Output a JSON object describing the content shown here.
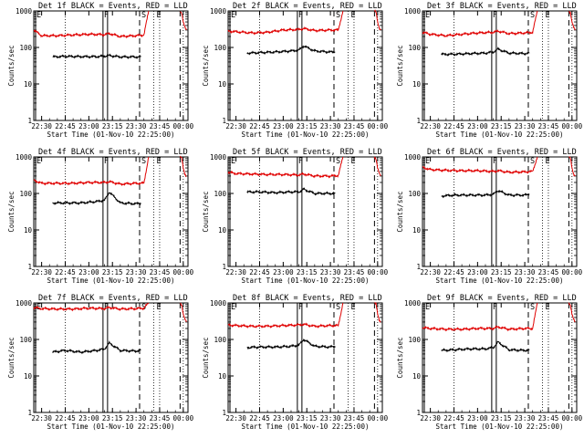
{
  "figure": {
    "title_template": "Det {n}f BLACK = Events, RED = LLD",
    "xlabel": "Start Time (01-Nov-10 22:25:00)",
    "ylabel": "Counts/sec",
    "marker_labels": [
      "E",
      "F",
      "S",
      "E"
    ]
  },
  "chart_data": [
    {
      "type": "line",
      "title": "Det 1f BLACK = Events, RED = LLD",
      "xlabel": "Start Time (01-Nov-10 22:25:00)",
      "ylabel": "Counts/sec",
      "yscale": "log",
      "ylim": [
        1,
        1000
      ],
      "xlim": [
        "22:25",
        "00:03"
      ],
      "xticks": [
        "22:30",
        "22:45",
        "23:00",
        "23:15",
        "23:30",
        "23:45",
        "00:00"
      ],
      "yticks": [
        "1",
        "10",
        "100",
        "1000"
      ],
      "series": [
        {
          "color": "#000000",
          "x": [
            "22:37",
            "22:45",
            "22:55",
            "23:05",
            "23:10",
            "23:13",
            "23:20",
            "23:30",
            "23:33"
          ],
          "y": [
            55,
            57,
            56,
            56,
            58,
            60,
            55,
            55,
            55
          ]
        },
        {
          "color": "#e00000",
          "x": [
            "22:25",
            "22:30",
            "22:40",
            "22:50",
            "23:00",
            "23:10",
            "23:13",
            "23:20",
            "23:30",
            "23:35",
            "23:38"
          ],
          "y": [
            300,
            210,
            210,
            220,
            230,
            225,
            240,
            200,
            210,
            220,
            1000
          ]
        },
        {
          "color": "#e00000",
          "x": [
            "23:58",
            "23:59",
            "00:00",
            "00:01",
            "00:02"
          ],
          "y": [
            1000,
            900,
            500,
            350,
            300
          ]
        }
      ],
      "markers": [
        {
          "label": "E",
          "x": "22:25"
        },
        {
          "label": "F",
          "x": "23:09"
        },
        {
          "label": "S",
          "x": "23:34"
        },
        {
          "label": "E",
          "x": "23:43"
        }
      ]
    },
    {
      "type": "line",
      "title": "Det 2f BLACK = Events, RED = LLD",
      "xlabel": "Start Time (01-Nov-10 22:25:00)",
      "ylabel": "Counts/sec",
      "yscale": "log",
      "ylim": [
        1,
        1000
      ],
      "xlim": [
        "22:25",
        "00:03"
      ],
      "xticks": [
        "22:30",
        "22:45",
        "23:00",
        "23:15",
        "23:30",
        "23:45",
        "00:00"
      ],
      "yticks": [
        "1",
        "10",
        "100",
        "1000"
      ],
      "series": [
        {
          "color": "#000000",
          "x": [
            "22:37",
            "22:45",
            "22:55",
            "23:05",
            "23:10",
            "23:13",
            "23:20",
            "23:30",
            "23:33"
          ],
          "y": [
            70,
            72,
            75,
            80,
            85,
            110,
            80,
            75,
            75
          ]
        },
        {
          "color": "#e00000",
          "x": [
            "22:25",
            "22:30",
            "22:40",
            "22:50",
            "23:00",
            "23:10",
            "23:13",
            "23:20",
            "23:30",
            "23:35",
            "23:38"
          ],
          "y": [
            280,
            270,
            250,
            260,
            300,
            310,
            330,
            290,
            300,
            300,
            1000
          ]
        },
        {
          "color": "#e00000",
          "x": [
            "23:58",
            "23:59",
            "00:00",
            "00:01",
            "00:02"
          ],
          "y": [
            1000,
            900,
            500,
            350,
            300
          ]
        }
      ],
      "markers": [
        {
          "label": "E",
          "x": "22:25"
        },
        {
          "label": "F",
          "x": "23:09"
        },
        {
          "label": "S",
          "x": "23:34"
        },
        {
          "label": "E",
          "x": "23:43"
        }
      ]
    },
    {
      "type": "line",
      "title": "Det 3f BLACK = Events, RED = LLD",
      "xlabel": "Start Time (01-Nov-10 22:25:00)",
      "ylabel": "Counts/sec",
      "yscale": "log",
      "ylim": [
        1,
        1000
      ],
      "xlim": [
        "22:25",
        "00:03"
      ],
      "xticks": [
        "22:30",
        "22:45",
        "23:00",
        "23:15",
        "23:30",
        "23:45",
        "00:00"
      ],
      "yticks": [
        "1",
        "10",
        "100",
        "1000"
      ],
      "series": [
        {
          "color": "#000000",
          "x": [
            "22:37",
            "22:45",
            "22:55",
            "23:05",
            "23:10",
            "23:13",
            "23:20",
            "23:30",
            "23:33"
          ],
          "y": [
            65,
            65,
            68,
            70,
            75,
            90,
            70,
            68,
            70
          ]
        },
        {
          "color": "#e00000",
          "x": [
            "22:25",
            "22:30",
            "22:40",
            "22:50",
            "23:00",
            "23:10",
            "23:13",
            "23:20",
            "23:30",
            "23:35",
            "23:38"
          ],
          "y": [
            260,
            230,
            210,
            230,
            250,
            260,
            280,
            240,
            250,
            260,
            1000
          ]
        },
        {
          "color": "#e00000",
          "x": [
            "23:58",
            "23:59",
            "00:00",
            "00:01",
            "00:02"
          ],
          "y": [
            1000,
            900,
            500,
            350,
            300
          ]
        }
      ],
      "markers": [
        {
          "label": "E",
          "x": "22:25"
        },
        {
          "label": "F",
          "x": "23:09"
        },
        {
          "label": "S",
          "x": "23:34"
        },
        {
          "label": "E",
          "x": "23:43"
        }
      ]
    },
    {
      "type": "line",
      "title": "Det 4f BLACK = Events, RED = LLD",
      "xlabel": "Start Time (01-Nov-10 22:25:00)",
      "ylabel": "Counts/sec",
      "yscale": "log",
      "ylim": [
        1,
        1000
      ],
      "xlim": [
        "22:25",
        "00:03"
      ],
      "xticks": [
        "22:30",
        "22:45",
        "23:00",
        "23:15",
        "23:30",
        "23:45",
        "00:00"
      ],
      "yticks": [
        "1",
        "10",
        "100",
        "1000"
      ],
      "series": [
        {
          "color": "#000000",
          "x": [
            "22:37",
            "22:45",
            "22:55",
            "23:05",
            "23:10",
            "23:13",
            "23:20",
            "23:30",
            "23:33"
          ],
          "y": [
            55,
            55,
            55,
            60,
            65,
            110,
            55,
            52,
            55
          ]
        },
        {
          "color": "#e00000",
          "x": [
            "22:25",
            "22:30",
            "22:40",
            "22:50",
            "23:00",
            "23:10",
            "23:13",
            "23:20",
            "23:30",
            "23:35",
            "23:38"
          ],
          "y": [
            230,
            190,
            190,
            190,
            200,
            200,
            210,
            180,
            190,
            190,
            1000
          ]
        },
        {
          "color": "#e00000",
          "x": [
            "23:58",
            "23:59",
            "00:00",
            "00:01",
            "00:02"
          ],
          "y": [
            1000,
            900,
            500,
            350,
            300
          ]
        }
      ],
      "markers": [
        {
          "label": "E",
          "x": "22:25"
        },
        {
          "label": "F",
          "x": "23:09"
        },
        {
          "label": "S",
          "x": "23:34"
        },
        {
          "label": "E",
          "x": "23:43"
        }
      ]
    },
    {
      "type": "line",
      "title": "Det 5f BLACK = Events, RED = LLD",
      "xlabel": "Start Time (01-Nov-10 22:25:00)",
      "ylabel": "Counts/sec",
      "yscale": "log",
      "ylim": [
        1,
        1000
      ],
      "xlim": [
        "22:25",
        "00:03"
      ],
      "xticks": [
        "22:30",
        "22:45",
        "23:00",
        "23:15",
        "23:30",
        "23:45",
        "00:00"
      ],
      "yticks": [
        "1",
        "10",
        "100",
        "1000"
      ],
      "series": [
        {
          "color": "#000000",
          "x": [
            "22:37",
            "22:45",
            "22:55",
            "23:05",
            "23:10",
            "23:13",
            "23:20",
            "23:30",
            "23:33"
          ],
          "y": [
            110,
            110,
            105,
            110,
            110,
            130,
            100,
            100,
            100
          ]
        },
        {
          "color": "#e00000",
          "x": [
            "22:25",
            "22:30",
            "22:40",
            "22:50",
            "23:00",
            "23:10",
            "23:13",
            "23:20",
            "23:30",
            "23:35",
            "23:38"
          ],
          "y": [
            380,
            350,
            340,
            330,
            330,
            320,
            340,
            300,
            300,
            310,
            1000
          ]
        },
        {
          "color": "#e00000",
          "x": [
            "23:58",
            "23:59",
            "00:00",
            "00:01",
            "00:02"
          ],
          "y": [
            1000,
            900,
            500,
            350,
            300
          ]
        }
      ],
      "markers": [
        {
          "label": "E",
          "x": "22:25"
        },
        {
          "label": "F",
          "x": "23:09"
        },
        {
          "label": "S",
          "x": "23:34"
        },
        {
          "label": "E",
          "x": "23:43"
        }
      ]
    },
    {
      "type": "line",
      "title": "Det 6f BLACK = Events, RED = LLD",
      "xlabel": "Start Time (01-Nov-10 22:25:00)",
      "ylabel": "Counts/sec",
      "yscale": "log",
      "ylim": [
        1,
        1000
      ],
      "xlim": [
        "22:25",
        "00:03"
      ],
      "xticks": [
        "22:30",
        "22:45",
        "23:00",
        "23:15",
        "23:30",
        "23:45",
        "00:00"
      ],
      "yticks": [
        "1",
        "10",
        "100",
        "1000"
      ],
      "series": [
        {
          "color": "#000000",
          "x": [
            "22:37",
            "22:45",
            "22:55",
            "23:05",
            "23:10",
            "23:13",
            "23:20",
            "23:30",
            "23:33"
          ],
          "y": [
            85,
            90,
            90,
            90,
            95,
            120,
            90,
            90,
            95
          ]
        },
        {
          "color": "#e00000",
          "x": [
            "22:25",
            "22:30",
            "22:40",
            "22:50",
            "23:00",
            "23:10",
            "23:13",
            "23:20",
            "23:30",
            "23:35",
            "23:38"
          ],
          "y": [
            520,
            450,
            430,
            420,
            420,
            400,
            420,
            380,
            390,
            400,
            1000
          ]
        },
        {
          "color": "#e00000",
          "x": [
            "23:58",
            "23:59",
            "00:00",
            "00:01",
            "00:02"
          ],
          "y": [
            1000,
            900,
            500,
            350,
            300
          ]
        }
      ],
      "markers": [
        {
          "label": "E",
          "x": "22:25"
        },
        {
          "label": "F",
          "x": "23:09"
        },
        {
          "label": "S",
          "x": "23:34"
        },
        {
          "label": "E",
          "x": "23:43"
        }
      ]
    },
    {
      "type": "line",
      "title": "Det 7f BLACK = Events, RED = LLD",
      "xlabel": "Start Time (01-Nov-10 22:25:00)",
      "ylabel": "Counts/sec",
      "yscale": "log",
      "ylim": [
        1,
        1000
      ],
      "xlim": [
        "22:25",
        "00:03"
      ],
      "xticks": [
        "22:30",
        "22:45",
        "23:00",
        "23:15",
        "23:30",
        "23:45",
        "00:00"
      ],
      "yticks": [
        "1",
        "10",
        "100",
        "1000"
      ],
      "series": [
        {
          "color": "#000000",
          "x": [
            "22:37",
            "22:45",
            "22:55",
            "23:05",
            "23:10",
            "23:13",
            "23:20",
            "23:30",
            "23:33"
          ],
          "y": [
            45,
            50,
            45,
            50,
            55,
            80,
            50,
            48,
            50
          ]
        },
        {
          "color": "#e00000",
          "x": [
            "22:25",
            "22:30",
            "22:40",
            "22:50",
            "23:00",
            "23:10",
            "23:13",
            "23:20",
            "23:30",
            "23:35",
            "23:38"
          ],
          "y": [
            750,
            700,
            680,
            680,
            720,
            700,
            750,
            680,
            700,
            720,
            1000
          ]
        },
        {
          "color": "#e00000",
          "x": [
            "23:58",
            "23:59",
            "00:00",
            "00:01",
            "00:02"
          ],
          "y": [
            1000,
            900,
            500,
            350,
            300
          ]
        }
      ],
      "markers": [
        {
          "label": "E",
          "x": "22:25"
        },
        {
          "label": "F",
          "x": "23:09"
        },
        {
          "label": "S",
          "x": "23:34"
        },
        {
          "label": "E",
          "x": "23:43"
        }
      ]
    },
    {
      "type": "line",
      "title": "Det 8f BLACK = Events, RED = LLD",
      "xlabel": "Start Time (01-Nov-10 22:25:00)",
      "ylabel": "Counts/sec",
      "yscale": "log",
      "ylim": [
        1,
        1000
      ],
      "xlim": [
        "22:25",
        "00:03"
      ],
      "xticks": [
        "22:30",
        "22:45",
        "23:00",
        "23:15",
        "23:30",
        "23:45",
        "00:00"
      ],
      "yticks": [
        "1",
        "10",
        "100",
        "1000"
      ],
      "series": [
        {
          "color": "#000000",
          "x": [
            "22:37",
            "22:45",
            "22:55",
            "23:05",
            "23:10",
            "23:13",
            "23:20",
            "23:30",
            "23:33"
          ],
          "y": [
            60,
            62,
            62,
            65,
            70,
            100,
            65,
            62,
            65
          ]
        },
        {
          "color": "#e00000",
          "x": [
            "22:25",
            "22:30",
            "22:40",
            "22:50",
            "23:00",
            "23:10",
            "23:13",
            "23:20",
            "23:30",
            "23:35",
            "23:38"
          ],
          "y": [
            250,
            240,
            230,
            230,
            240,
            250,
            260,
            230,
            240,
            240,
            1000
          ]
        },
        {
          "color": "#e00000",
          "x": [
            "23:58",
            "23:59",
            "00:00",
            "00:01",
            "00:02"
          ],
          "y": [
            1000,
            900,
            500,
            350,
            300
          ]
        }
      ],
      "markers": [
        {
          "label": "E",
          "x": "22:25"
        },
        {
          "label": "F",
          "x": "23:09"
        },
        {
          "label": "S",
          "x": "23:34"
        },
        {
          "label": "E",
          "x": "23:43"
        }
      ]
    },
    {
      "type": "line",
      "title": "Det 9f BLACK = Events, RED = LLD",
      "xlabel": "Start Time (01-Nov-10 22:25:00)",
      "ylabel": "Counts/sec",
      "yscale": "log",
      "ylim": [
        1,
        1000
      ],
      "xlim": [
        "22:25",
        "00:03"
      ],
      "xticks": [
        "22:30",
        "22:45",
        "23:00",
        "23:15",
        "23:30",
        "23:45",
        "00:00"
      ],
      "yticks": [
        "1",
        "10",
        "100",
        "1000"
      ],
      "series": [
        {
          "color": "#000000",
          "x": [
            "22:37",
            "22:45",
            "22:55",
            "23:05",
            "23:10",
            "23:13",
            "23:20",
            "23:30",
            "23:33"
          ],
          "y": [
            50,
            52,
            55,
            55,
            60,
            85,
            52,
            50,
            52
          ]
        },
        {
          "color": "#e00000",
          "x": [
            "22:25",
            "22:30",
            "22:40",
            "22:50",
            "23:00",
            "23:10",
            "23:13",
            "23:20",
            "23:30",
            "23:35",
            "23:38"
          ],
          "y": [
            210,
            200,
            190,
            190,
            200,
            200,
            220,
            190,
            200,
            200,
            1000
          ]
        },
        {
          "color": "#e00000",
          "x": [
            "23:58",
            "23:59",
            "00:00",
            "00:01",
            "00:02"
          ],
          "y": [
            1000,
            900,
            500,
            350,
            300
          ]
        }
      ],
      "markers": [
        {
          "label": "E",
          "x": "22:25"
        },
        {
          "label": "F",
          "x": "23:09"
        },
        {
          "label": "S",
          "x": "23:34"
        },
        {
          "label": "E",
          "x": "23:43"
        }
      ]
    }
  ]
}
